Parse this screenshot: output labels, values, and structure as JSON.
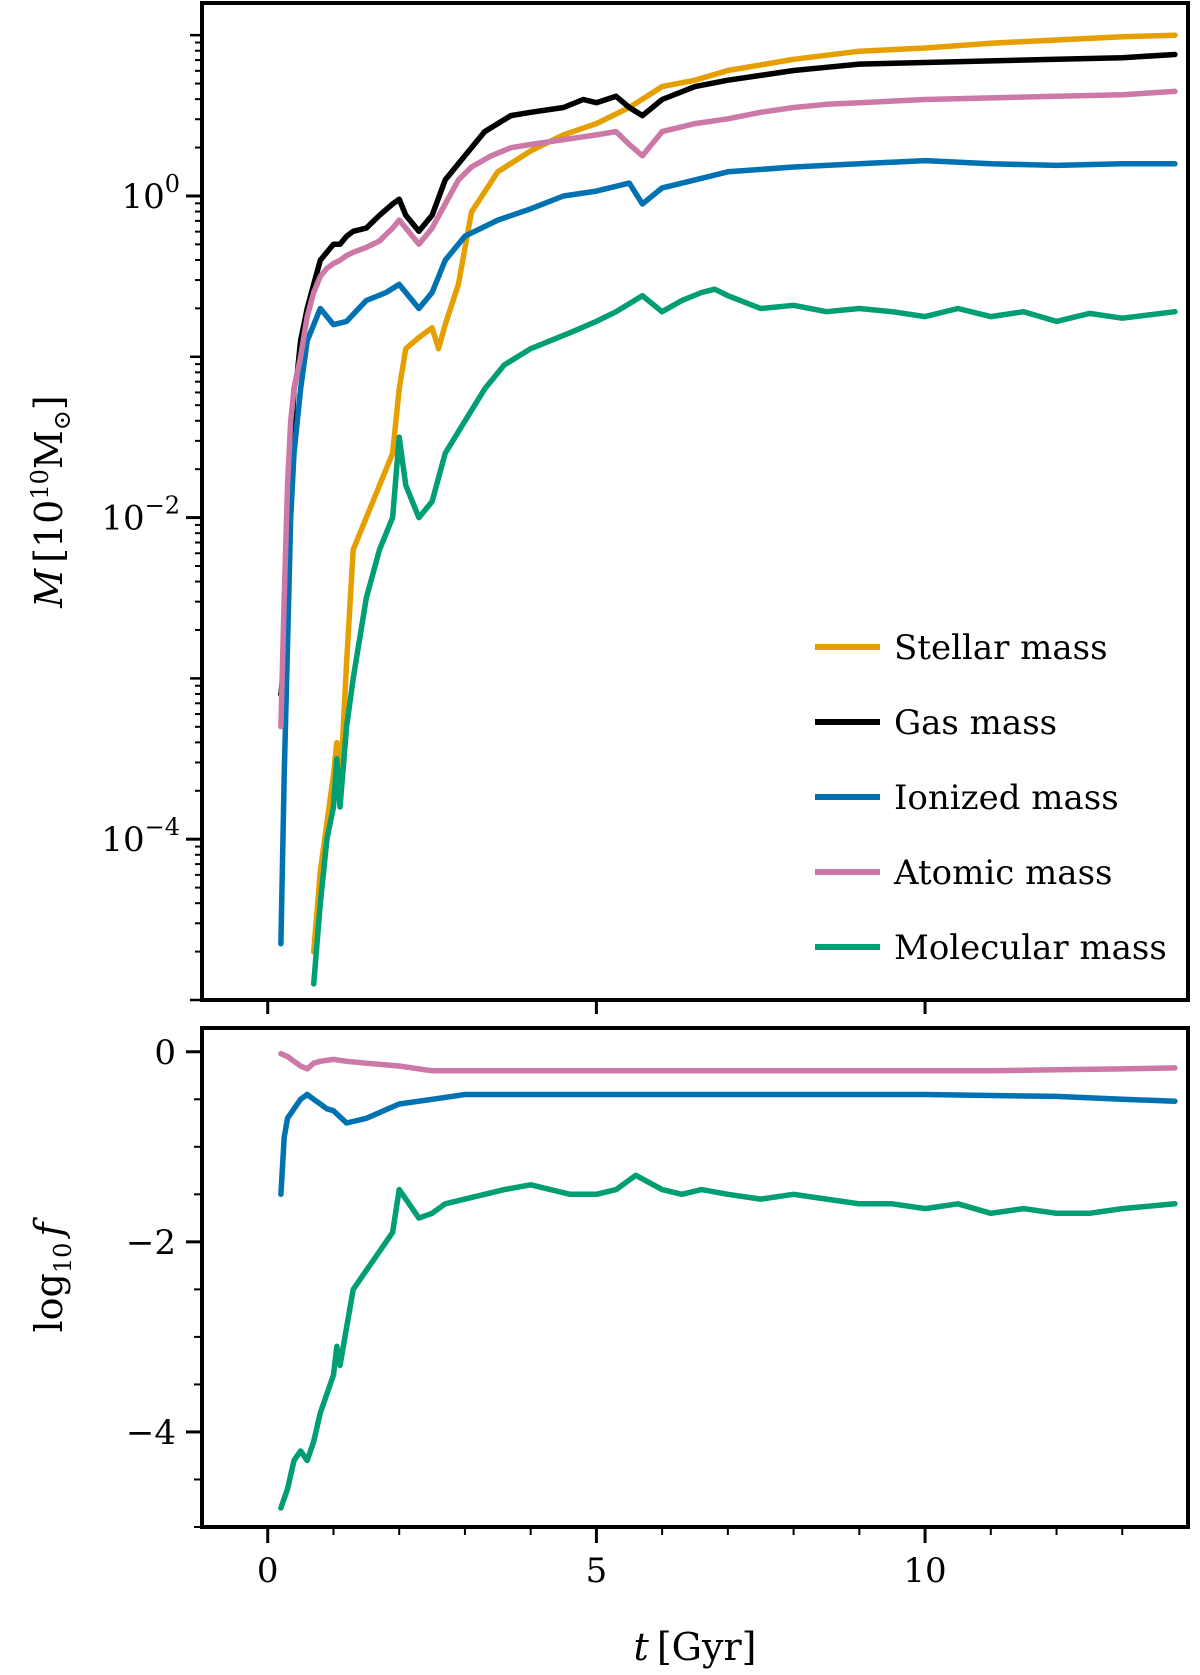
{
  "chart_data": [
    {
      "type": "line",
      "panel": "top",
      "title": "",
      "xlabel": "",
      "ylabel": "M [10^10 M_sun]",
      "ylabel_parts": {
        "main": "M",
        "lbr": "[10",
        "exp": "10",
        "unit": "M",
        "sub": "⊙",
        "rbr": "]"
      },
      "yscale": "log",
      "xlim": [
        -1.0,
        14.0
      ],
      "ylim_log10": [
        -5.0,
        1.2
      ],
      "yticks": [
        {
          "value": 0,
          "base": "10",
          "exp": "0"
        },
        {
          "value": -2,
          "base": "10",
          "exp": "−2"
        },
        {
          "value": -4,
          "base": "10",
          "exp": "−4"
        }
      ],
      "legend": {
        "location": "lower-right",
        "entries": [
          "Stellar mass",
          "Gas mass",
          "Ionized mass",
          "Atomic mass",
          "Molecular mass"
        ]
      },
      "grid": false,
      "series": [
        {
          "name": "Stellar mass",
          "color": "#e69f00",
          "x": [
            0.7,
            0.8,
            1.0,
            1.05,
            1.1,
            1.2,
            1.3,
            1.5,
            1.7,
            1.9,
            2.0,
            2.1,
            2.3,
            2.5,
            2.6,
            2.7,
            2.9,
            3.1,
            3.5,
            4.0,
            4.5,
            5.0,
            5.5,
            6.0,
            6.5,
            7.0,
            8.0,
            9.0,
            10.0,
            11.0,
            12.0,
            13.0,
            13.8
          ],
          "y": [
            -4.7,
            -4.2,
            -3.6,
            -3.4,
            -3.7,
            -2.9,
            -2.2,
            -2.0,
            -1.8,
            -1.6,
            -1.2,
            -0.95,
            -0.88,
            -0.82,
            -0.95,
            -0.8,
            -0.55,
            -0.1,
            0.15,
            0.28,
            0.38,
            0.45,
            0.55,
            0.68,
            0.72,
            0.78,
            0.85,
            0.9,
            0.92,
            0.95,
            0.97,
            0.99,
            1.0
          ]
        },
        {
          "name": "Gas mass",
          "color": "#000000",
          "x": [
            0.2,
            0.25,
            0.3,
            0.35,
            0.4,
            0.45,
            0.5,
            0.6,
            0.7,
            0.8,
            0.9,
            1.0,
            1.1,
            1.2,
            1.3,
            1.5,
            1.7,
            1.9,
            2.0,
            2.1,
            2.3,
            2.5,
            2.7,
            3.0,
            3.3,
            3.7,
            4.0,
            4.5,
            4.8,
            5.0,
            5.3,
            5.5,
            5.7,
            6.0,
            6.5,
            7.0,
            7.5,
            8.0,
            8.5,
            9.0,
            10.0,
            11.0,
            12.0,
            13.0,
            13.8
          ],
          "y": [
            -3.1,
            -2.9,
            -2.2,
            -1.6,
            -1.2,
            -1.1,
            -0.9,
            -0.7,
            -0.55,
            -0.4,
            -0.35,
            -0.3,
            -0.3,
            -0.25,
            -0.22,
            -0.2,
            -0.12,
            -0.05,
            -0.02,
            -0.12,
            -0.22,
            -0.12,
            0.1,
            0.25,
            0.4,
            0.5,
            0.52,
            0.55,
            0.6,
            0.58,
            0.62,
            0.55,
            0.5,
            0.6,
            0.68,
            0.72,
            0.75,
            0.78,
            0.8,
            0.82,
            0.83,
            0.84,
            0.85,
            0.86,
            0.88
          ]
        },
        {
          "name": "Ionized mass",
          "color": "#0072b2",
          "x": [
            0.2,
            0.25,
            0.3,
            0.35,
            0.4,
            0.5,
            0.6,
            0.8,
            1.0,
            1.2,
            1.5,
            1.8,
            2.0,
            2.1,
            2.3,
            2.5,
            2.7,
            3.0,
            3.5,
            4.0,
            4.5,
            5.0,
            5.5,
            5.7,
            6.0,
            6.5,
            7.0,
            8.0,
            9.0,
            10.0,
            11.0,
            12.0,
            13.0,
            13.8
          ],
          "y": [
            -4.65,
            -3.6,
            -2.8,
            -2.0,
            -1.6,
            -1.2,
            -0.9,
            -0.7,
            -0.8,
            -0.78,
            -0.65,
            -0.6,
            -0.55,
            -0.6,
            -0.7,
            -0.6,
            -0.4,
            -0.25,
            -0.15,
            -0.08,
            0.0,
            0.03,
            0.08,
            -0.05,
            0.05,
            0.1,
            0.15,
            0.18,
            0.2,
            0.22,
            0.2,
            0.19,
            0.2,
            0.2
          ]
        },
        {
          "name": "Atomic mass",
          "color": "#cc79a7",
          "x": [
            0.2,
            0.25,
            0.3,
            0.35,
            0.4,
            0.45,
            0.5,
            0.6,
            0.7,
            0.8,
            0.9,
            1.0,
            1.1,
            1.2,
            1.3,
            1.5,
            1.7,
            1.9,
            2.0,
            2.1,
            2.3,
            2.5,
            2.7,
            2.9,
            3.1,
            3.4,
            3.7,
            4.0,
            4.5,
            5.0,
            5.3,
            5.5,
            5.7,
            6.0,
            6.5,
            7.0,
            7.5,
            8.0,
            8.5,
            9.0,
            10.0,
            11.0,
            12.0,
            13.0,
            13.8
          ],
          "y": [
            -3.3,
            -2.5,
            -1.8,
            -1.4,
            -1.2,
            -1.1,
            -1.0,
            -0.75,
            -0.6,
            -0.5,
            -0.45,
            -0.42,
            -0.4,
            -0.37,
            -0.35,
            -0.32,
            -0.28,
            -0.2,
            -0.15,
            -0.2,
            -0.3,
            -0.2,
            -0.05,
            0.1,
            0.18,
            0.25,
            0.3,
            0.32,
            0.35,
            0.38,
            0.4,
            0.32,
            0.25,
            0.4,
            0.45,
            0.48,
            0.52,
            0.55,
            0.57,
            0.58,
            0.6,
            0.61,
            0.62,
            0.63,
            0.65
          ]
        },
        {
          "name": "Molecular mass",
          "color": "#009e73",
          "x": [
            0.7,
            0.8,
            0.9,
            1.0,
            1.05,
            1.1,
            1.2,
            1.3,
            1.5,
            1.7,
            1.9,
            2.0,
            2.1,
            2.3,
            2.5,
            2.7,
            3.0,
            3.3,
            3.6,
            4.0,
            4.3,
            4.6,
            5.0,
            5.3,
            5.5,
            5.7,
            6.0,
            6.3,
            6.6,
            6.8,
            7.0,
            7.5,
            8.0,
            8.5,
            9.0,
            9.5,
            10.0,
            10.5,
            11.0,
            11.5,
            12.0,
            12.5,
            13.0,
            13.8
          ],
          "y": [
            -4.9,
            -4.4,
            -4.0,
            -3.8,
            -3.5,
            -3.8,
            -3.3,
            -3.0,
            -2.5,
            -2.2,
            -2.0,
            -1.5,
            -1.8,
            -2.0,
            -1.9,
            -1.6,
            -1.4,
            -1.2,
            -1.05,
            -0.95,
            -0.9,
            -0.85,
            -0.78,
            -0.72,
            -0.67,
            -0.62,
            -0.72,
            -0.65,
            -0.6,
            -0.58,
            -0.62,
            -0.7,
            -0.68,
            -0.72,
            -0.7,
            -0.72,
            -0.75,
            -0.7,
            -0.75,
            -0.72,
            -0.78,
            -0.73,
            -0.76,
            -0.72
          ]
        }
      ]
    },
    {
      "type": "line",
      "panel": "bottom",
      "title": "",
      "xlabel": "t [Gyr]",
      "xlabel_parts": {
        "main": "t",
        "unit": "[Gyr]"
      },
      "ylabel": "log10 f",
      "ylabel_parts": {
        "main": "log",
        "sub": "10",
        "var": "f"
      },
      "xlim": [
        -1.0,
        14.0
      ],
      "ylim": [
        -5.0,
        0.25
      ],
      "xticks": [
        0,
        5,
        10
      ],
      "yticks": [
        0,
        -2,
        -4
      ],
      "ytick_labels": [
        "0",
        "−2",
        "−4"
      ],
      "grid": false,
      "series": [
        {
          "name": "Atomic mass",
          "color": "#cc79a7",
          "x": [
            0.2,
            0.3,
            0.4,
            0.5,
            0.6,
            0.7,
            0.8,
            1.0,
            1.2,
            1.5,
            2.0,
            2.5,
            3.0,
            4.0,
            5.0,
            6.0,
            7.0,
            8.0,
            9.0,
            10.0,
            11.0,
            12.0,
            13.0,
            13.8
          ],
          "y": [
            -0.02,
            -0.05,
            -0.1,
            -0.15,
            -0.18,
            -0.12,
            -0.1,
            -0.08,
            -0.1,
            -0.12,
            -0.15,
            -0.2,
            -0.2,
            -0.2,
            -0.2,
            -0.2,
            -0.2,
            -0.2,
            -0.2,
            -0.2,
            -0.2,
            -0.19,
            -0.18,
            -0.17
          ]
        },
        {
          "name": "Ionized mass",
          "color": "#0072b2",
          "x": [
            0.2,
            0.25,
            0.3,
            0.4,
            0.5,
            0.6,
            0.7,
            0.8,
            0.9,
            1.0,
            1.2,
            1.5,
            2.0,
            2.5,
            3.0,
            3.5,
            4.0,
            5.0,
            6.0,
            7.0,
            8.0,
            9.0,
            10.0,
            11.0,
            12.0,
            13.0,
            13.8
          ],
          "y": [
            -1.5,
            -0.9,
            -0.7,
            -0.6,
            -0.5,
            -0.45,
            -0.5,
            -0.55,
            -0.6,
            -0.62,
            -0.75,
            -0.7,
            -0.55,
            -0.5,
            -0.45,
            -0.45,
            -0.45,
            -0.45,
            -0.45,
            -0.45,
            -0.45,
            -0.45,
            -0.45,
            -0.46,
            -0.47,
            -0.5,
            -0.52
          ]
        },
        {
          "name": "Molecular mass",
          "color": "#009e73",
          "x": [
            0.2,
            0.3,
            0.4,
            0.5,
            0.6,
            0.7,
            0.8,
            0.9,
            1.0,
            1.05,
            1.1,
            1.2,
            1.3,
            1.5,
            1.7,
            1.9,
            2.0,
            2.1,
            2.3,
            2.5,
            2.7,
            3.0,
            3.3,
            3.6,
            4.0,
            4.3,
            4.6,
            5.0,
            5.3,
            5.6,
            6.0,
            6.3,
            6.6,
            7.0,
            7.5,
            8.0,
            8.5,
            9.0,
            9.5,
            10.0,
            10.5,
            11.0,
            11.5,
            12.0,
            12.5,
            13.0,
            13.8
          ],
          "y": [
            -4.8,
            -4.6,
            -4.3,
            -4.2,
            -4.3,
            -4.1,
            -3.8,
            -3.6,
            -3.4,
            -3.1,
            -3.3,
            -2.9,
            -2.5,
            -2.3,
            -2.1,
            -1.9,
            -1.45,
            -1.55,
            -1.75,
            -1.7,
            -1.6,
            -1.55,
            -1.5,
            -1.45,
            -1.4,
            -1.45,
            -1.5,
            -1.5,
            -1.45,
            -1.3,
            -1.45,
            -1.5,
            -1.45,
            -1.5,
            -1.55,
            -1.5,
            -1.55,
            -1.6,
            -1.6,
            -1.65,
            -1.6,
            -1.7,
            -1.65,
            -1.7,
            -1.7,
            -1.65,
            -1.6
          ]
        }
      ]
    }
  ]
}
